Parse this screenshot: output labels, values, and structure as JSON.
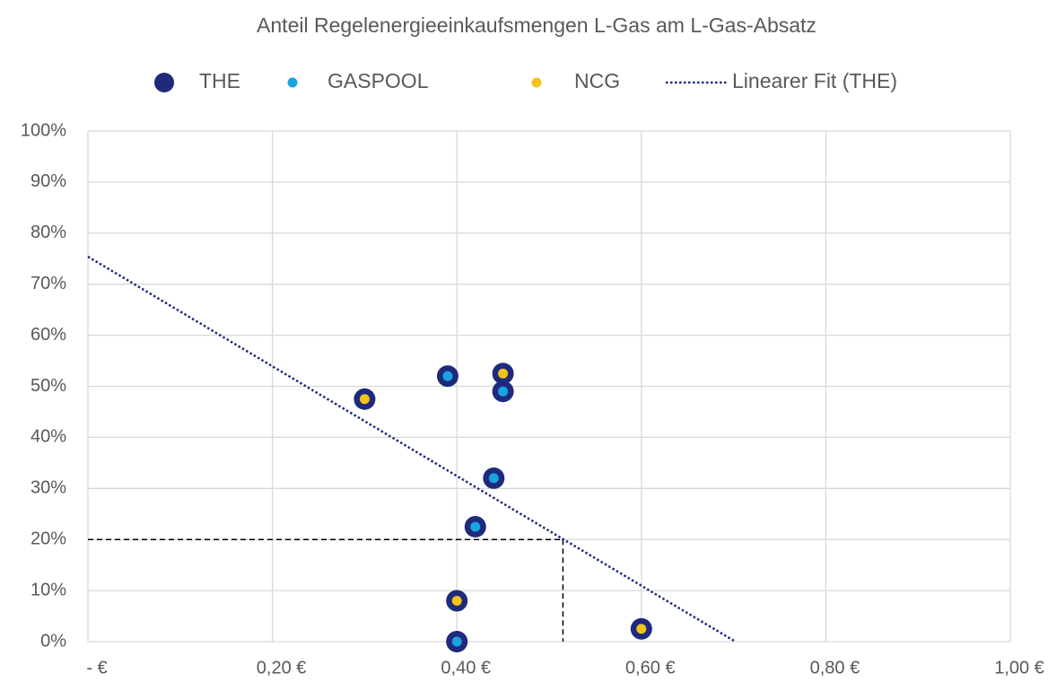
{
  "chart_data": {
    "type": "scatter",
    "title": "Anteil Regelenergieeinkaufsmengen L-Gas am L-Gas-Absatz",
    "series": [
      {
        "name": "THE",
        "color": "#1f2a7c",
        "marker": "large",
        "x": [
          0.3,
          0.39,
          0.45,
          0.45,
          0.44,
          0.42,
          0.4,
          0.4,
          0.6
        ],
        "values": [
          47.5,
          52,
          52.5,
          49,
          32,
          22.5,
          8,
          0,
          2.5
        ]
      },
      {
        "name": "GASPOOL",
        "color": "#1aa3e0",
        "marker": "small",
        "x": [
          0.39,
          0.45,
          0.44,
          0.42,
          0.4
        ],
        "values": [
          52,
          49,
          32,
          22.5,
          0
        ]
      },
      {
        "name": "NCG",
        "color": "#f2c418",
        "marker": "small",
        "x": [
          0.3,
          0.45,
          0.4,
          0.6
        ],
        "values": [
          47.5,
          52.5,
          8,
          2.5
        ]
      },
      {
        "name": "Linearer Fit (THE)",
        "color": "#1f2a7c",
        "marker": "dotted-line",
        "x": [
          0,
          0.702
        ],
        "values": [
          75.4,
          0
        ]
      }
    ],
    "reference": {
      "x": 0.515,
      "y": 20
    },
    "xlim": [
      0,
      1
    ],
    "ylim": [
      0,
      100
    ],
    "xticks": [
      {
        "value": 0,
        "label": "-  €"
      },
      {
        "value": 0.2,
        "label": "0,20 €"
      },
      {
        "value": 0.4,
        "label": "0,40 €"
      },
      {
        "value": 0.6,
        "label": "0,60 €"
      },
      {
        "value": 0.8,
        "label": "0,80 €"
      },
      {
        "value": 1,
        "label": "1,00 €"
      }
    ],
    "yticks": [
      {
        "value": 0,
        "label": "0%"
      },
      {
        "value": 10,
        "label": "10%"
      },
      {
        "value": 20,
        "label": "20%"
      },
      {
        "value": 30,
        "label": "30%"
      },
      {
        "value": 40,
        "label": "40%"
      },
      {
        "value": 50,
        "label": "50%"
      },
      {
        "value": 60,
        "label": "60%"
      },
      {
        "value": 70,
        "label": "70%"
      },
      {
        "value": 80,
        "label": "80%"
      },
      {
        "value": 90,
        "label": "90%"
      },
      {
        "value": 100,
        "label": "100%"
      }
    ],
    "grid": true,
    "legend": "top"
  }
}
